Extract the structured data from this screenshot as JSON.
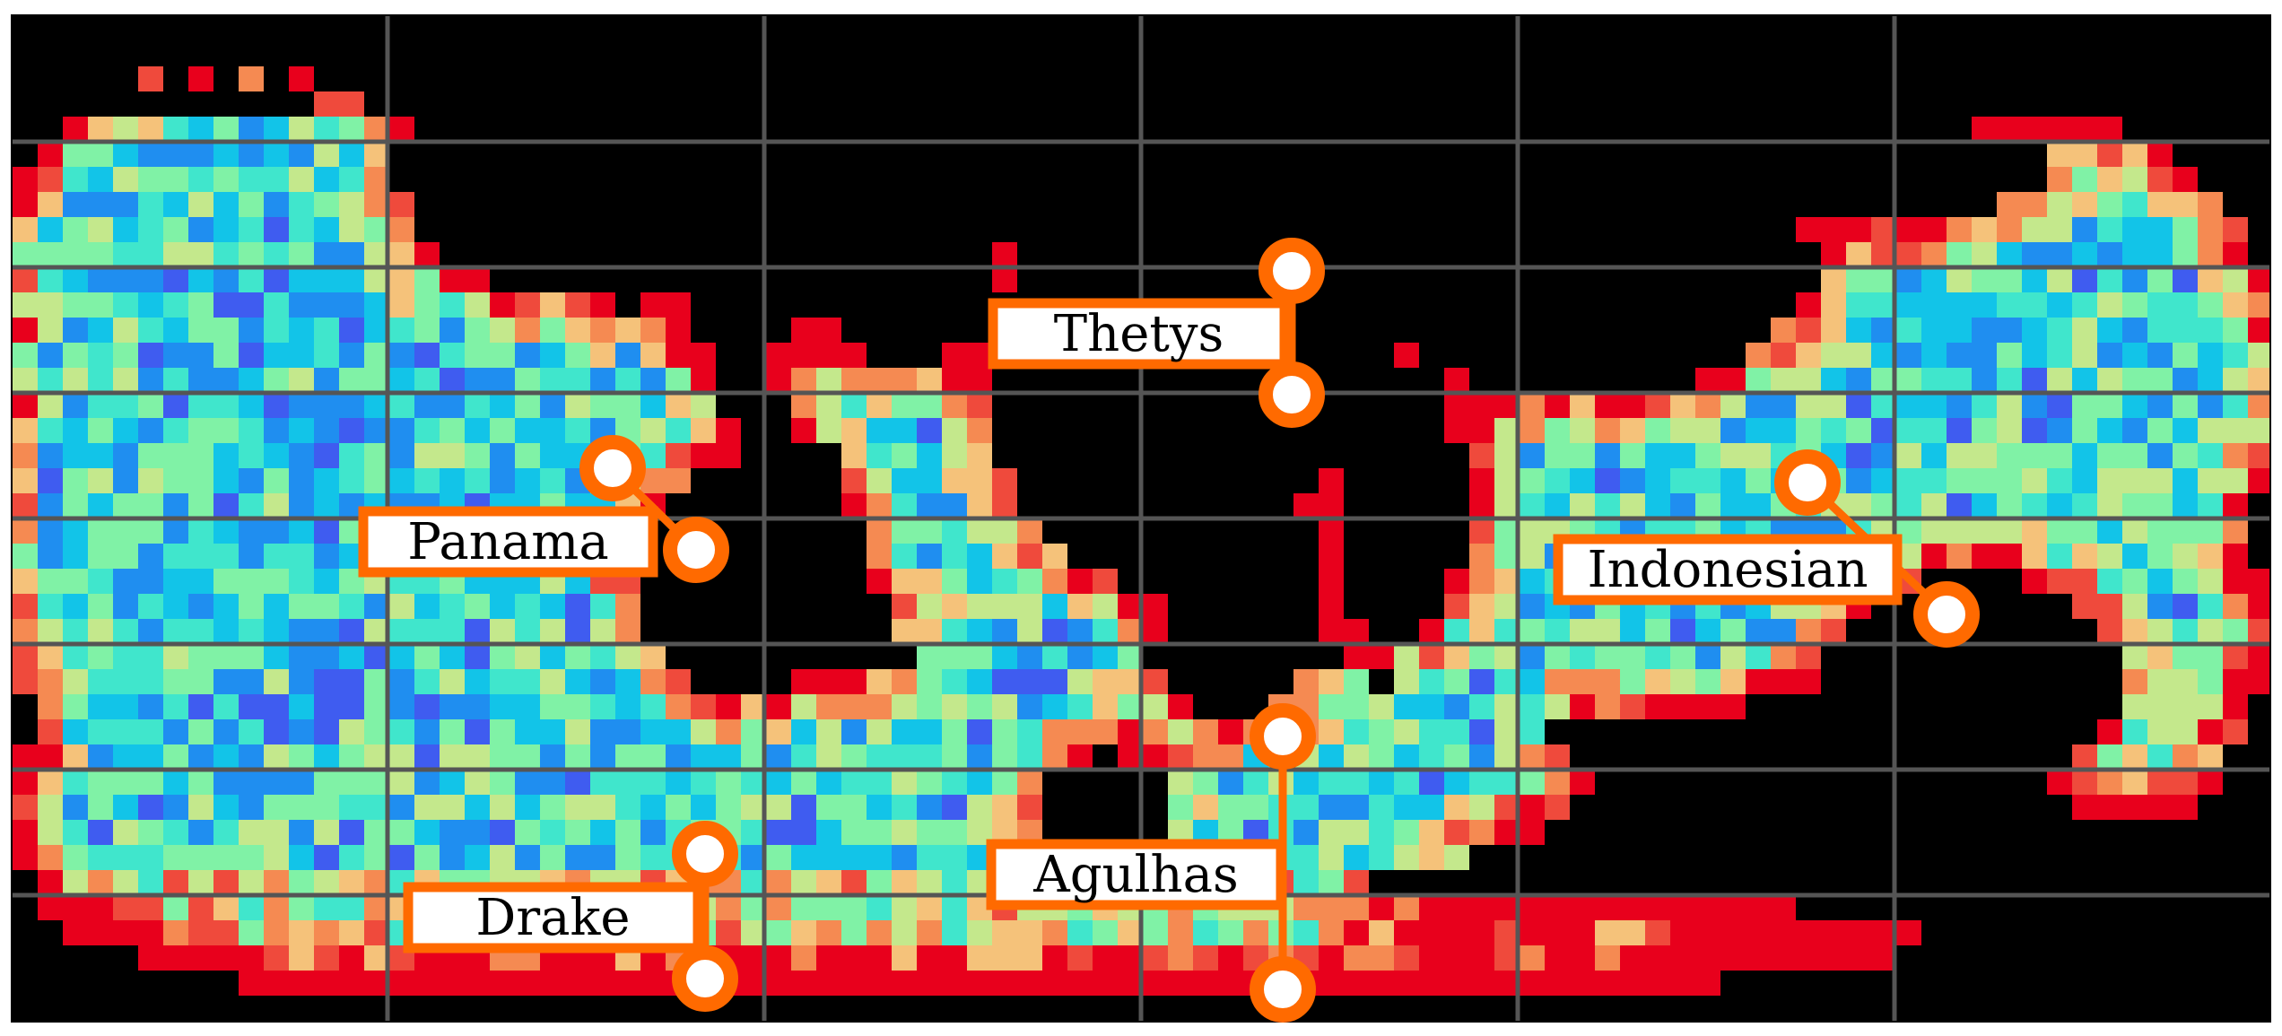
{
  "map": {
    "background_land_color": "#000000",
    "grid_color": "#555555",
    "accent_color": "#ff6a00",
    "colormap": [
      "#6a18ff",
      "#3f5cf0",
      "#1f8ef0",
      "#12c4e8",
      "#40e6cc",
      "#80f2a6",
      "#c4e88c",
      "#f5c27a",
      "#f58a52",
      "#ef4a3c",
      "#e8001c"
    ]
  },
  "gateways": [
    {
      "id": "thetys",
      "label": "Thetys"
    },
    {
      "id": "panama",
      "label": "Panama"
    },
    {
      "id": "indonesian",
      "label": "Indonesian"
    },
    {
      "id": "agulhas",
      "label": "Agulhas"
    },
    {
      "id": "drake",
      "label": "Drake"
    }
  ]
}
